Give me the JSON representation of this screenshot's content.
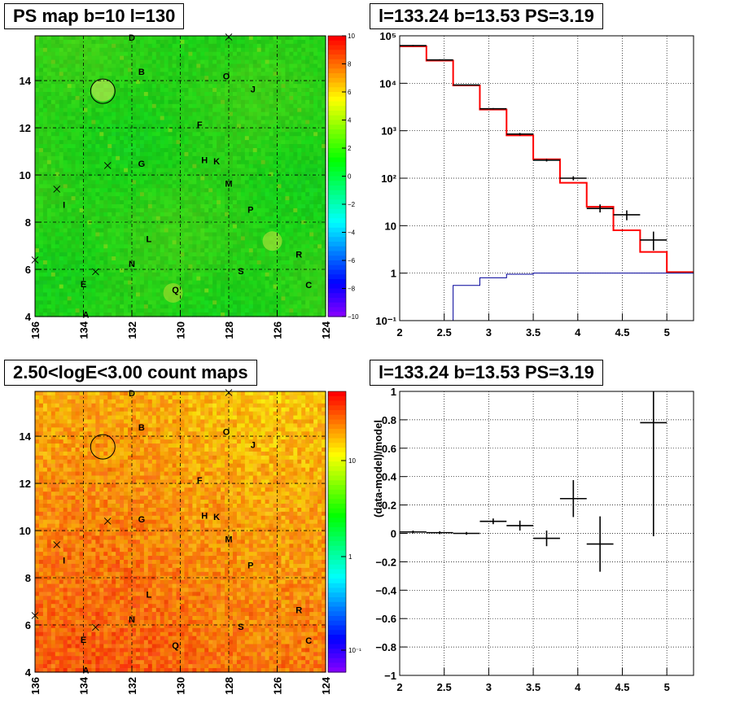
{
  "titles": {
    "ps_map": "PS map b=10 l=130",
    "spectrum": "l=133.24 b=13.53 PS=3.19",
    "count_map": "2.50<logE<3.00 count maps",
    "residual": "l=133.24 b=13.53 PS=3.19"
  },
  "map_axes": {
    "x_ticks": [
      "136",
      "134",
      "132",
      "130",
      "128",
      "126",
      "124"
    ],
    "y_ticks": [
      "4",
      "6",
      "8",
      "10",
      "12",
      "14"
    ]
  },
  "ps_colorbar_ticks": [
    "10",
    "8",
    "6",
    "4",
    "2",
    "0",
    "−2",
    "−4",
    "−6",
    "−8",
    "−10"
  ],
  "count_colorbar_ticks": [
    "10",
    "1",
    "10⁻¹"
  ],
  "sources": [
    {
      "label": "D",
      "l": 132.0,
      "b": 15.7
    },
    {
      "label": "B",
      "l": 131.6,
      "b": 14.25
    },
    {
      "label": "O",
      "l": 128.1,
      "b": 14.05
    },
    {
      "label": "J",
      "l": 127.0,
      "b": 13.5
    },
    {
      "label": "F",
      "l": 129.2,
      "b": 12.0
    },
    {
      "label": "G",
      "l": 131.6,
      "b": 10.35
    },
    {
      "label": "H",
      "l": 129.0,
      "b": 10.5
    },
    {
      "label": "K",
      "l": 128.5,
      "b": 10.45
    },
    {
      "label": "M",
      "l": 128.0,
      "b": 9.5
    },
    {
      "label": "I",
      "l": 134.8,
      "b": 8.6
    },
    {
      "label": "P",
      "l": 127.1,
      "b": 8.4
    },
    {
      "label": "L",
      "l": 131.3,
      "b": 7.15
    },
    {
      "label": "R",
      "l": 125.1,
      "b": 6.5
    },
    {
      "label": "N",
      "l": 132.0,
      "b": 6.1
    },
    {
      "label": "S",
      "l": 127.5,
      "b": 5.8
    },
    {
      "label": "E",
      "l": 134.0,
      "b": 5.25
    },
    {
      "label": "C",
      "l": 124.7,
      "b": 5.2
    },
    {
      "label": "Q",
      "l": 130.2,
      "b": 5.0
    },
    {
      "label": "A",
      "l": 133.9,
      "b": 3.95
    }
  ],
  "crosses": [
    {
      "l": 128.0,
      "b": 15.85
    },
    {
      "l": 133.0,
      "b": 10.4
    },
    {
      "l": 135.1,
      "b": 9.4
    },
    {
      "l": 133.5,
      "b": 5.9
    },
    {
      "l": 136.0,
      "b": 6.4
    }
  ],
  "circle": {
    "l": 133.2,
    "b": 13.55,
    "r": 0.5
  },
  "chart_data": [
    {
      "type": "line",
      "name": "spectrum",
      "xlim": [
        2,
        5.3
      ],
      "ylim": [
        0.1,
        100000
      ],
      "yscale": "log",
      "x_ticks": [
        "2",
        "2.5",
        "3",
        "3.5",
        "4",
        "4.5",
        "5"
      ],
      "y_ticks": [
        "10⁻¹",
        "1",
        "10",
        "10²",
        "10³",
        "10⁴",
        "10⁵"
      ],
      "y_tick_values": [
        0.1,
        1,
        10,
        100,
        1000,
        10000,
        100000
      ],
      "grid": true,
      "series": [
        {
          "color": "#ff0000",
          "edges": [
            2.0,
            2.3,
            2.6,
            2.9,
            3.2,
            3.5,
            3.8,
            4.1,
            4.4,
            4.7,
            5.0,
            5.3
          ],
          "values": [
            60000,
            30000,
            9000,
            2800,
            800,
            250,
            80,
            25,
            8,
            2.8,
            1.05
          ]
        },
        {
          "color": "#000099",
          "edges": [
            2.0,
            2.3,
            2.6,
            2.9,
            3.2,
            3.5,
            3.8,
            4.1,
            4.4,
            4.7,
            5.0,
            5.3
          ],
          "values": [
            0.1,
            0.1,
            0.55,
            0.8,
            0.95,
            1.0,
            1.0,
            1.0,
            1.0,
            1.0,
            1.0
          ]
        }
      ],
      "points": [
        {
          "x": 2.15,
          "y": 62000,
          "ylo": 60000,
          "yhi": 64000,
          "xw": 0.15
        },
        {
          "x": 2.45,
          "y": 31000,
          "ylo": 30000,
          "yhi": 32000,
          "xw": 0.15
        },
        {
          "x": 2.75,
          "y": 9200,
          "ylo": 9000,
          "yhi": 9400,
          "xw": 0.15
        },
        {
          "x": 3.05,
          "y": 2900,
          "ylo": 2800,
          "yhi": 3000,
          "xw": 0.15
        },
        {
          "x": 3.35,
          "y": 850,
          "ylo": 800,
          "yhi": 900,
          "xw": 0.15
        },
        {
          "x": 3.65,
          "y": 240,
          "ylo": 225,
          "yhi": 255,
          "xw": 0.15
        },
        {
          "x": 3.95,
          "y": 100,
          "ylo": 90,
          "yhi": 110,
          "xw": 0.15
        },
        {
          "x": 4.25,
          "y": 23,
          "ylo": 19,
          "yhi": 28,
          "xw": 0.15
        },
        {
          "x": 4.55,
          "y": 17,
          "ylo": 13,
          "yhi": 21,
          "xw": 0.15
        },
        {
          "x": 4.85,
          "y": 5,
          "ylo": 3,
          "yhi": 7.5,
          "xw": 0.15
        }
      ]
    },
    {
      "type": "scatter",
      "name": "residual",
      "xlim": [
        2,
        5.3
      ],
      "ylim": [
        -1,
        1
      ],
      "ylabel": "(data-model)/model",
      "x_ticks": [
        "2",
        "2.5",
        "3",
        "3.5",
        "4",
        "4.5",
        "5"
      ],
      "x_tick_values": [
        2,
        2.5,
        3,
        3.5,
        4,
        4.5,
        5
      ],
      "y_ticks": [
        "1",
        "0.8",
        "0.6",
        "0.4",
        "0.2",
        "0",
        "−0.2",
        "−0.4",
        "−0.6",
        "−0.8",
        "−1"
      ],
      "y_tick_values": [
        1,
        0.8,
        0.6,
        0.4,
        0.2,
        0,
        -0.2,
        -0.4,
        -0.6,
        -0.8,
        -1
      ],
      "grid": true,
      "points": [
        {
          "x": 2.15,
          "y": 0.01,
          "err": 0.01,
          "xw": 0.15
        },
        {
          "x": 2.45,
          "y": 0.005,
          "err": 0.01,
          "xw": 0.15
        },
        {
          "x": 2.75,
          "y": 0.0,
          "err": 0.01,
          "xw": 0.15
        },
        {
          "x": 3.05,
          "y": 0.085,
          "err": 0.02,
          "xw": 0.15
        },
        {
          "x": 3.35,
          "y": 0.055,
          "err": 0.035,
          "xw": 0.15
        },
        {
          "x": 3.65,
          "y": -0.035,
          "err": 0.055,
          "xw": 0.15
        },
        {
          "x": 3.95,
          "y": 0.245,
          "err": 0.13,
          "xw": 0.15
        },
        {
          "x": 4.25,
          "y": -0.075,
          "err": 0.195,
          "xw": 0.15
        },
        {
          "x": 4.85,
          "y": 0.78,
          "err": 0.8,
          "xw": 0.15
        }
      ]
    }
  ]
}
